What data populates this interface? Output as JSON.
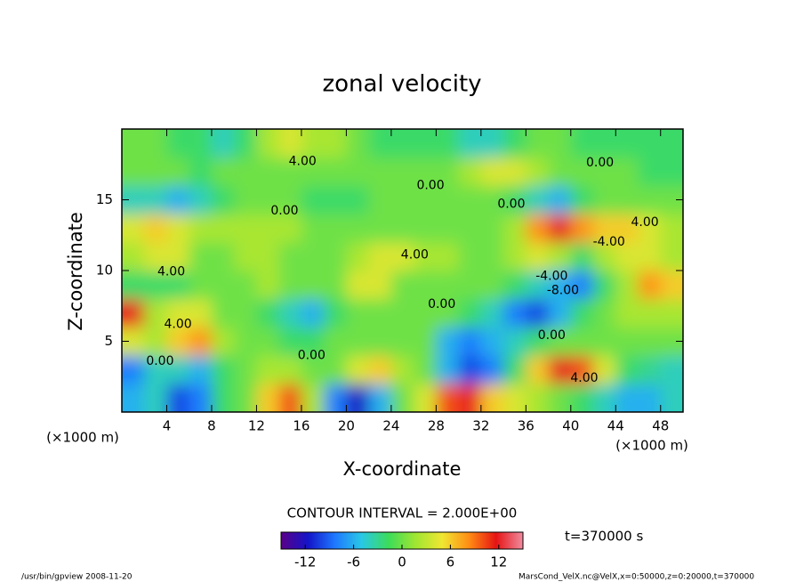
{
  "chart_data": {
    "type": "heatmap",
    "title": "zonal velocity",
    "x_label": "X-coordinate",
    "y_label": "Z-coordinate",
    "x_unit_label": "(×1000 m)",
    "y_unit_label": "(×1000 m)",
    "xlim": [
      0,
      50
    ],
    "ylim": [
      0,
      20
    ],
    "xticks": [
      4,
      8,
      12,
      16,
      20,
      24,
      28,
      32,
      36,
      40,
      44,
      48
    ],
    "yticks": [
      5,
      10,
      15
    ],
    "x": [
      1,
      3,
      5,
      7,
      9,
      11,
      13,
      15,
      17,
      19,
      21,
      23,
      25,
      27,
      29,
      31,
      33,
      35,
      37,
      39,
      41,
      43,
      45,
      47,
      49
    ],
    "y": [
      1,
      3,
      5,
      7,
      9,
      11,
      13,
      15,
      17,
      19
    ],
    "z": [
      [
        -6,
        -4,
        -10,
        -8,
        -2,
        0,
        6,
        10,
        2,
        -8,
        -12,
        -6,
        0,
        4,
        10,
        12,
        6,
        4,
        2,
        0,
        -2,
        -4,
        -6,
        -6,
        -4
      ],
      [
        -8,
        -4,
        -4,
        -6,
        -2,
        0,
        2,
        2,
        0,
        0,
        4,
        6,
        2,
        0,
        -6,
        -10,
        -8,
        -2,
        6,
        12,
        10,
        4,
        -2,
        -3,
        -4
      ],
      [
        4,
        2,
        6,
        8,
        2,
        0,
        0,
        -2,
        -2,
        0,
        0,
        0,
        0,
        0,
        -6,
        -8,
        -6,
        -4,
        -2,
        0,
        0,
        0,
        0,
        0,
        0
      ],
      [
        12,
        2,
        4,
        4,
        0,
        0,
        -2,
        -4,
        -6,
        -2,
        0,
        0,
        0,
        0,
        0,
        -2,
        -4,
        -8,
        -10,
        -6,
        -2,
        0,
        2,
        2,
        2
      ],
      [
        -2,
        -2,
        -2,
        0,
        0,
        0,
        2,
        0,
        0,
        0,
        4,
        4,
        0,
        0,
        0,
        0,
        0,
        -2,
        -4,
        -6,
        -8,
        -2,
        2,
        8,
        6
      ],
      [
        2,
        4,
        4,
        0,
        0,
        2,
        2,
        0,
        0,
        0,
        2,
        4,
        4,
        2,
        2,
        0,
        0,
        2,
        4,
        2,
        -2,
        2,
        4,
        4,
        2
      ],
      [
        4,
        6,
        4,
        2,
        2,
        2,
        2,
        2,
        0,
        0,
        0,
        0,
        0,
        0,
        0,
        0,
        0,
        2,
        8,
        12,
        8,
        6,
        6,
        4,
        2
      ],
      [
        -4,
        -4,
        -6,
        -4,
        -2,
        0,
        0,
        0,
        -2,
        -2,
        -2,
        0,
        0,
        0,
        0,
        0,
        0,
        -2,
        -4,
        -6,
        -2,
        0,
        0,
        0,
        0
      ],
      [
        0,
        0,
        0,
        -2,
        0,
        0,
        0,
        0,
        0,
        0,
        0,
        0,
        0,
        0,
        0,
        2,
        4,
        4,
        2,
        0,
        0,
        0,
        0,
        -2,
        -2
      ],
      [
        0,
        0,
        -2,
        -2,
        -4,
        -2,
        2,
        4,
        2,
        2,
        0,
        -2,
        -2,
        -2,
        -2,
        -4,
        -4,
        -2,
        0,
        0,
        -2,
        -2,
        -2,
        -2,
        -2
      ]
    ],
    "colormap": [
      "#5a0087",
      "#1414c8",
      "#1e78ff",
      "#28c8e6",
      "#3cdc5a",
      "#a0e632",
      "#f0e632",
      "#ff8c14",
      "#e61414",
      "#f08ca0"
    ],
    "colorbar": {
      "lim": [
        -15,
        15
      ],
      "ticks": [
        -12,
        -6,
        0,
        6,
        12
      ]
    },
    "contour_interval_label": "CONTOUR INTERVAL = 2.000E+00",
    "time_label": "t=370000 s",
    "annotations": [
      {
        "text": "4.00",
        "x": 16.1,
        "y": 17.7
      },
      {
        "text": "0.00",
        "x": 42.6,
        "y": 17.6
      },
      {
        "text": "0.00",
        "x": 27.5,
        "y": 16
      },
      {
        "text": "0.00",
        "x": 34.7,
        "y": 14.7
      },
      {
        "text": "0.00",
        "x": 14.5,
        "y": 14.2
      },
      {
        "text": "4.00",
        "x": 46.6,
        "y": 13.4
      },
      {
        "text": "-4.00",
        "x": 43.4,
        "y": 12
      },
      {
        "text": "4.00",
        "x": 26.1,
        "y": 11.1
      },
      {
        "text": "4.00",
        "x": 4.4,
        "y": 9.9
      },
      {
        "text": "-4.00",
        "x": 38.3,
        "y": 9.6
      },
      {
        "text": "-8.00",
        "x": 39.3,
        "y": 8.6
      },
      {
        "text": "0.00",
        "x": 28.5,
        "y": 7.6
      },
      {
        "text": "4.00",
        "x": 5,
        "y": 6.2
      },
      {
        "text": "0.00",
        "x": 38.3,
        "y": 5.4
      },
      {
        "text": "0.00",
        "x": 16.9,
        "y": 4
      },
      {
        "text": "0.00",
        "x": 3.4,
        "y": 3.6
      },
      {
        "text": "4.00",
        "x": 41.2,
        "y": 2.4
      }
    ]
  },
  "footer": {
    "left": "/usr/bin/gpview  2008-11-20",
    "right": "MarsCond_VelX.nc@VelX,x=0:50000,z=0:20000,t=370000"
  }
}
